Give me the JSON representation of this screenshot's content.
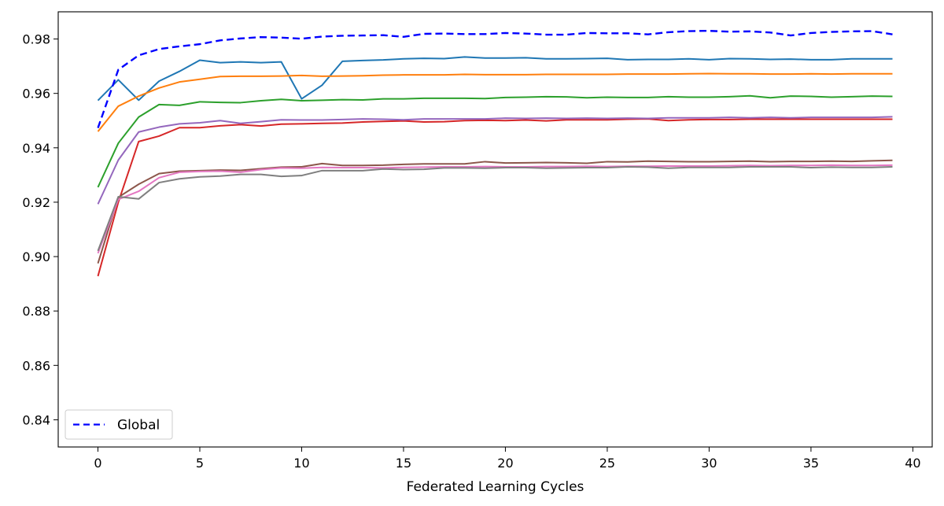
{
  "chart_data": {
    "type": "line",
    "xlabel": "Federated Learning Cycles",
    "ylabel": "",
    "xlim": [
      -1.95,
      40.95
    ],
    "ylim": [
      0.83,
      0.99
    ],
    "xticks": [
      0,
      5,
      10,
      15,
      20,
      25,
      30,
      35,
      40
    ],
    "yticks": [
      0.84,
      0.86,
      0.88,
      0.9,
      0.92,
      0.94,
      0.96,
      0.98
    ],
    "grid": false,
    "legend": {
      "placement": "lower-left",
      "entries": [
        "Global"
      ]
    },
    "x": [
      0,
      1,
      2,
      3,
      4,
      5,
      6,
      7,
      8,
      9,
      10,
      11,
      12,
      13,
      14,
      15,
      16,
      17,
      18,
      19,
      20,
      21,
      22,
      23,
      24,
      25,
      26,
      27,
      28,
      29,
      30,
      31,
      32,
      33,
      34,
      35,
      36,
      37,
      38,
      39
    ],
    "series": [
      {
        "name": "Global",
        "color": "#0000ff",
        "dashed": true,
        "values": [
          0.9473,
          0.9687,
          0.974,
          0.9763,
          0.9773,
          0.9781,
          0.9795,
          0.9802,
          0.9807,
          0.9805,
          0.9801,
          0.9809,
          0.9812,
          0.9813,
          0.9814,
          0.9808,
          0.9819,
          0.982,
          0.9818,
          0.9818,
          0.9822,
          0.982,
          0.9816,
          0.9816,
          0.9822,
          0.9821,
          0.9821,
          0.9817,
          0.9825,
          0.9829,
          0.983,
          0.9827,
          0.9828,
          0.9824,
          0.9813,
          0.9822,
          0.9826,
          0.9828,
          0.9829,
          0.9817
        ]
      },
      {
        "color": "#1f77b4",
        "values": [
          0.9574,
          0.965,
          0.9575,
          0.9645,
          0.9681,
          0.9722,
          0.9713,
          0.9716,
          0.9713,
          0.9716,
          0.958,
          0.963,
          0.9718,
          0.9721,
          0.9723,
          0.9727,
          0.9729,
          0.9728,
          0.9734,
          0.973,
          0.973,
          0.9731,
          0.9727,
          0.9727,
          0.9728,
          0.9729,
          0.9724,
          0.9725,
          0.9725,
          0.9727,
          0.9724,
          0.9728,
          0.9727,
          0.9725,
          0.9726,
          0.9724,
          0.9724,
          0.9727,
          0.9727,
          0.9727
        ]
      },
      {
        "color": "#ff7f0e",
        "values": [
          0.946,
          0.9553,
          0.959,
          0.962,
          0.9642,
          0.9652,
          0.9662,
          0.9663,
          0.9663,
          0.9664,
          0.9666,
          0.9663,
          0.9664,
          0.9665,
          0.9667,
          0.9668,
          0.9668,
          0.9668,
          0.967,
          0.9669,
          0.9669,
          0.9669,
          0.967,
          0.967,
          0.967,
          0.967,
          0.9671,
          0.9671,
          0.9671,
          0.9672,
          0.9673,
          0.9672,
          0.9672,
          0.9671,
          0.9671,
          0.9672,
          0.9671,
          0.9672,
          0.9672,
          0.9672
        ]
      },
      {
        "color": "#2ca02c",
        "values": [
          0.9255,
          0.9417,
          0.9513,
          0.9559,
          0.9556,
          0.9569,
          0.9567,
          0.9566,
          0.9573,
          0.9578,
          0.9573,
          0.9575,
          0.9577,
          0.9576,
          0.958,
          0.958,
          0.9582,
          0.9582,
          0.9582,
          0.9581,
          0.9585,
          0.9586,
          0.9588,
          0.9587,
          0.9584,
          0.9586,
          0.9585,
          0.9585,
          0.9588,
          0.9586,
          0.9586,
          0.9588,
          0.9591,
          0.9584,
          0.959,
          0.9589,
          0.9586,
          0.9588,
          0.959,
          0.9589
        ]
      },
      {
        "color": "#d62728",
        "values": [
          0.8928,
          0.92,
          0.9423,
          0.9443,
          0.9474,
          0.9474,
          0.9481,
          0.9485,
          0.948,
          0.9487,
          0.9488,
          0.949,
          0.9491,
          0.9495,
          0.9497,
          0.9499,
          0.9495,
          0.9496,
          0.95,
          0.9501,
          0.95,
          0.9502,
          0.9499,
          0.9503,
          0.9503,
          0.9503,
          0.9505,
          0.9506,
          0.95,
          0.9503,
          0.9504,
          0.9504,
          0.9505,
          0.9505,
          0.9505,
          0.9505,
          0.9505,
          0.9505,
          0.9505,
          0.9505
        ]
      },
      {
        "color": "#9467bd",
        "values": [
          0.9193,
          0.9355,
          0.9458,
          0.9476,
          0.9488,
          0.9492,
          0.95,
          0.949,
          0.9496,
          0.9503,
          0.9502,
          0.9502,
          0.9504,
          0.9506,
          0.9505,
          0.9503,
          0.9506,
          0.9506,
          0.9506,
          0.9506,
          0.9509,
          0.9508,
          0.9509,
          0.9508,
          0.9509,
          0.9508,
          0.9509,
          0.9508,
          0.951,
          0.951,
          0.951,
          0.9512,
          0.951,
          0.9512,
          0.951,
          0.9512,
          0.9512,
          0.9512,
          0.9512,
          0.9514
        ]
      },
      {
        "color": "#8c564b",
        "values": [
          0.8975,
          0.9218,
          0.9266,
          0.9305,
          0.9314,
          0.9316,
          0.9318,
          0.9317,
          0.9323,
          0.9329,
          0.933,
          0.9342,
          0.9335,
          0.9335,
          0.9336,
          0.9339,
          0.9341,
          0.9341,
          0.9341,
          0.9349,
          0.9344,
          0.9345,
          0.9346,
          0.9345,
          0.9343,
          0.9349,
          0.9348,
          0.9351,
          0.935,
          0.9349,
          0.9349,
          0.935,
          0.9351,
          0.9349,
          0.935,
          0.935,
          0.9351,
          0.935,
          0.9352,
          0.9354
        ]
      },
      {
        "color": "#e377c2",
        "values": [
          0.9012,
          0.921,
          0.924,
          0.929,
          0.931,
          0.9313,
          0.9314,
          0.931,
          0.932,
          0.9326,
          0.9325,
          0.9328,
          0.9327,
          0.9327,
          0.9326,
          0.9328,
          0.9329,
          0.933,
          0.933,
          0.9331,
          0.933,
          0.933,
          0.9331,
          0.9331,
          0.9332,
          0.9331,
          0.9332,
          0.9332,
          0.9333,
          0.9333,
          0.9333,
          0.9334,
          0.9335,
          0.9334,
          0.9335,
          0.9335,
          0.9336,
          0.9335,
          0.9335,
          0.9336
        ]
      },
      {
        "color": "#7f7f7f",
        "values": [
          0.9021,
          0.922,
          0.9212,
          0.9272,
          0.9286,
          0.9293,
          0.9296,
          0.9302,
          0.9302,
          0.9295,
          0.9298,
          0.9316,
          0.9316,
          0.9316,
          0.9322,
          0.932,
          0.9321,
          0.9326,
          0.9326,
          0.9325,
          0.9327,
          0.9327,
          0.9325,
          0.9326,
          0.9327,
          0.9327,
          0.933,
          0.9329,
          0.9325,
          0.9328,
          0.9328,
          0.9328,
          0.933,
          0.933,
          0.933,
          0.9327,
          0.9329,
          0.9328,
          0.9328,
          0.933
        ]
      }
    ]
  }
}
